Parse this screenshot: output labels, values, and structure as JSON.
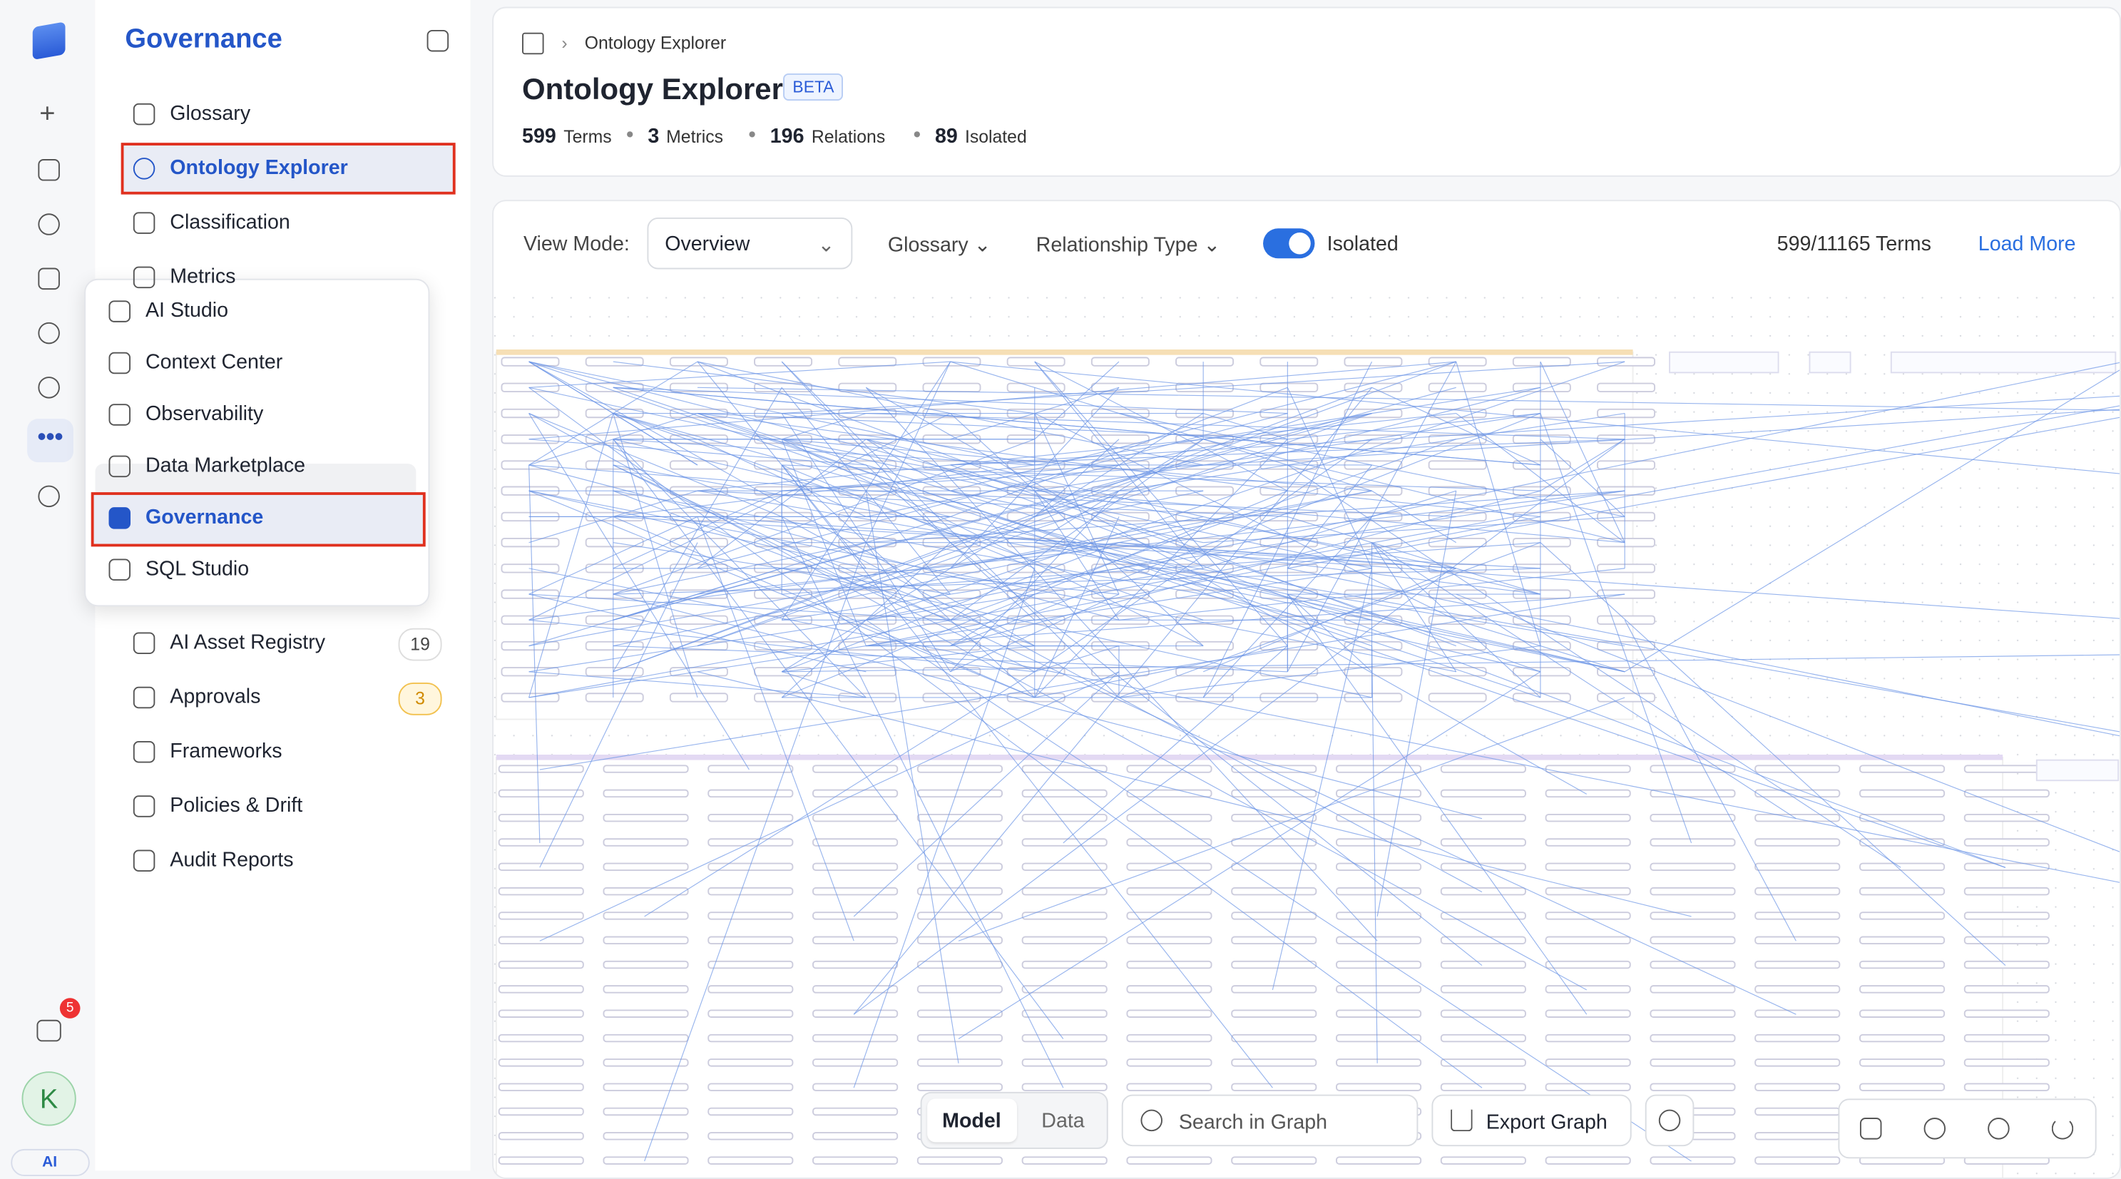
{
  "rail": {
    "badge": 5,
    "avatar": "K",
    "ai": "AI"
  },
  "sidebar": {
    "title": "Governance",
    "nav_top": [
      "Glossary",
      "Ontology Explorer",
      "Classification",
      "Metrics"
    ],
    "nav_bottom": [
      {
        "label": "AI Asset Registry",
        "badge": 19
      },
      {
        "label": "Approvals",
        "badge": 3
      },
      {
        "label": "Frameworks"
      },
      {
        "label": "Policies & Drift"
      },
      {
        "label": "Audit Reports"
      }
    ]
  },
  "menu": [
    "AI Studio",
    "Context Center",
    "Observability",
    "Data Marketplace",
    "Governance",
    "SQL Studio"
  ],
  "header": {
    "breadcrumb": "Ontology Explorer",
    "title": "Ontology Explorer",
    "tag": "BETA",
    "stats": [
      {
        "value": 599,
        "label": "Terms"
      },
      {
        "value": 3,
        "label": "Metrics"
      },
      {
        "value": 196,
        "label": "Relations"
      },
      {
        "value": 89,
        "label": "Isolated"
      }
    ]
  },
  "toolbar": {
    "view_mode_label": "View Mode:",
    "view_mode": "Overview",
    "glossary": "Glossary",
    "relationship": "Relationship Type",
    "isolated": "Isolated",
    "count": "599/11165 Terms",
    "load_more": "Load More"
  },
  "bottom": {
    "tabs": [
      "Model",
      "Data"
    ],
    "search": "Search in Graph",
    "export": "Export Graph"
  }
}
